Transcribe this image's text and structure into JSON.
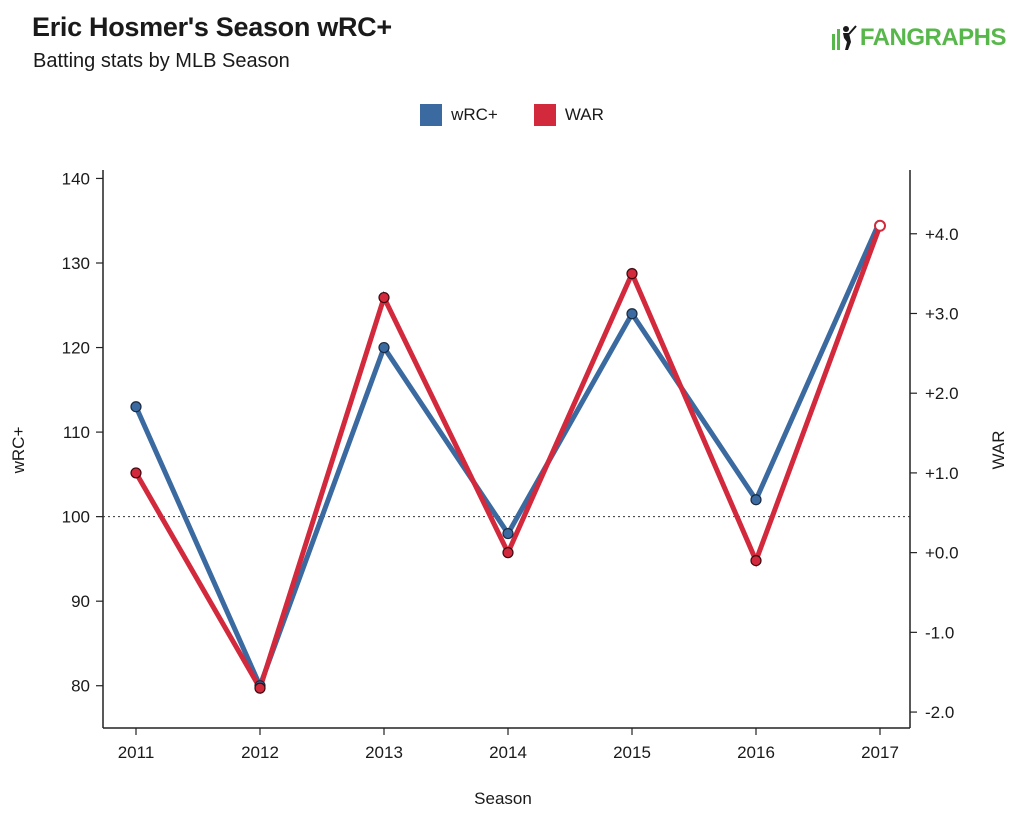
{
  "header": {
    "title": "Eric Hosmer's Season wRC+",
    "subtitle": "Batting stats by MLB Season",
    "logo_text": "FANGRAPHS"
  },
  "colors": {
    "wrc": "#3a6aa0",
    "war": "#d2293c",
    "logo": "#58b74b"
  },
  "chart_data": {
    "type": "line",
    "title": "Eric Hosmer's Season wRC+",
    "subtitle": "Batting stats by MLB Season",
    "xlabel": "Season",
    "ylabel": "wRC+",
    "y2label": "WAR",
    "categories": [
      "2011",
      "2012",
      "2013",
      "2014",
      "2015",
      "2016",
      "2017"
    ],
    "ylim": [
      75,
      141
    ],
    "y_ticks": [
      80,
      90,
      100,
      110,
      120,
      130,
      140
    ],
    "y2lim": [
      -2.2,
      4.8
    ],
    "y2_ticks": [
      -2.0,
      -1.0,
      0.0,
      1.0,
      2.0,
      3.0,
      4.0
    ],
    "y2_tick_labels": [
      "-2.0",
      "-1.0",
      "+0.0",
      "+1.0",
      "+2.0",
      "+3.0",
      "+4.0"
    ],
    "reference_line": 100,
    "legend_position": "top-center",
    "grid": false,
    "series": [
      {
        "name": "wRC+",
        "axis": "left",
        "values": [
          113,
          80,
          120,
          98,
          124,
          102,
          135
        ]
      },
      {
        "name": "WAR",
        "axis": "right",
        "values": [
          1.0,
          -1.7,
          3.2,
          0.0,
          3.5,
          -0.1,
          4.1
        ]
      }
    ]
  }
}
